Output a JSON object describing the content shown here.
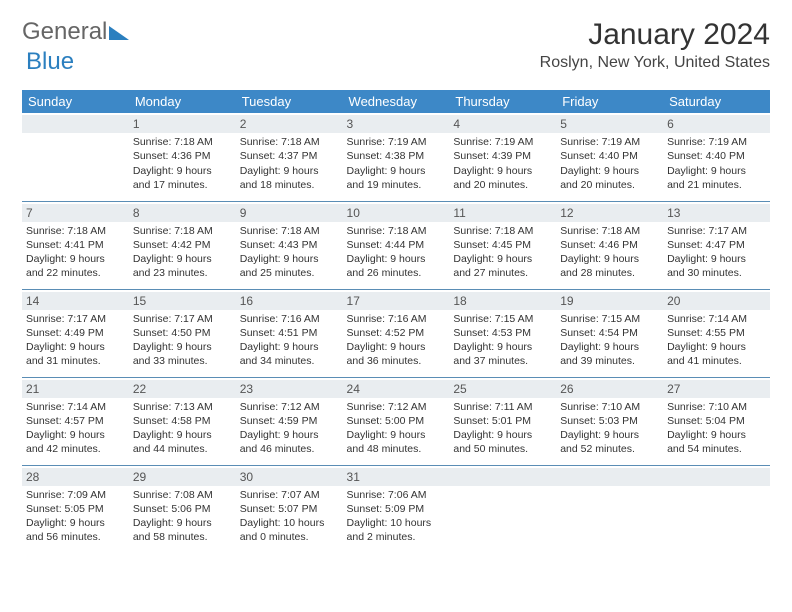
{
  "brand": {
    "part1": "General",
    "part2": "Blue"
  },
  "title": "January 2024",
  "location": "Roslyn, New York, United States",
  "colors": {
    "header_bg": "#3d88c7",
    "daynum_bg": "#e9edf0",
    "row_border": "#5a8db5",
    "brand_blue": "#2b7fbf"
  },
  "dayHeaders": [
    "Sunday",
    "Monday",
    "Tuesday",
    "Wednesday",
    "Thursday",
    "Friday",
    "Saturday"
  ],
  "weeks": [
    [
      null,
      {
        "n": "1",
        "sr": "Sunrise: 7:18 AM",
        "ss": "Sunset: 4:36 PM",
        "dl": "Daylight: 9 hours and 17 minutes."
      },
      {
        "n": "2",
        "sr": "Sunrise: 7:18 AM",
        "ss": "Sunset: 4:37 PM",
        "dl": "Daylight: 9 hours and 18 minutes."
      },
      {
        "n": "3",
        "sr": "Sunrise: 7:19 AM",
        "ss": "Sunset: 4:38 PM",
        "dl": "Daylight: 9 hours and 19 minutes."
      },
      {
        "n": "4",
        "sr": "Sunrise: 7:19 AM",
        "ss": "Sunset: 4:39 PM",
        "dl": "Daylight: 9 hours and 20 minutes."
      },
      {
        "n": "5",
        "sr": "Sunrise: 7:19 AM",
        "ss": "Sunset: 4:40 PM",
        "dl": "Daylight: 9 hours and 20 minutes."
      },
      {
        "n": "6",
        "sr": "Sunrise: 7:19 AM",
        "ss": "Sunset: 4:40 PM",
        "dl": "Daylight: 9 hours and 21 minutes."
      }
    ],
    [
      {
        "n": "7",
        "sr": "Sunrise: 7:18 AM",
        "ss": "Sunset: 4:41 PM",
        "dl": "Daylight: 9 hours and 22 minutes."
      },
      {
        "n": "8",
        "sr": "Sunrise: 7:18 AM",
        "ss": "Sunset: 4:42 PM",
        "dl": "Daylight: 9 hours and 23 minutes."
      },
      {
        "n": "9",
        "sr": "Sunrise: 7:18 AM",
        "ss": "Sunset: 4:43 PM",
        "dl": "Daylight: 9 hours and 25 minutes."
      },
      {
        "n": "10",
        "sr": "Sunrise: 7:18 AM",
        "ss": "Sunset: 4:44 PM",
        "dl": "Daylight: 9 hours and 26 minutes."
      },
      {
        "n": "11",
        "sr": "Sunrise: 7:18 AM",
        "ss": "Sunset: 4:45 PM",
        "dl": "Daylight: 9 hours and 27 minutes."
      },
      {
        "n": "12",
        "sr": "Sunrise: 7:18 AM",
        "ss": "Sunset: 4:46 PM",
        "dl": "Daylight: 9 hours and 28 minutes."
      },
      {
        "n": "13",
        "sr": "Sunrise: 7:17 AM",
        "ss": "Sunset: 4:47 PM",
        "dl": "Daylight: 9 hours and 30 minutes."
      }
    ],
    [
      {
        "n": "14",
        "sr": "Sunrise: 7:17 AM",
        "ss": "Sunset: 4:49 PM",
        "dl": "Daylight: 9 hours and 31 minutes."
      },
      {
        "n": "15",
        "sr": "Sunrise: 7:17 AM",
        "ss": "Sunset: 4:50 PM",
        "dl": "Daylight: 9 hours and 33 minutes."
      },
      {
        "n": "16",
        "sr": "Sunrise: 7:16 AM",
        "ss": "Sunset: 4:51 PM",
        "dl": "Daylight: 9 hours and 34 minutes."
      },
      {
        "n": "17",
        "sr": "Sunrise: 7:16 AM",
        "ss": "Sunset: 4:52 PM",
        "dl": "Daylight: 9 hours and 36 minutes."
      },
      {
        "n": "18",
        "sr": "Sunrise: 7:15 AM",
        "ss": "Sunset: 4:53 PM",
        "dl": "Daylight: 9 hours and 37 minutes."
      },
      {
        "n": "19",
        "sr": "Sunrise: 7:15 AM",
        "ss": "Sunset: 4:54 PM",
        "dl": "Daylight: 9 hours and 39 minutes."
      },
      {
        "n": "20",
        "sr": "Sunrise: 7:14 AM",
        "ss": "Sunset: 4:55 PM",
        "dl": "Daylight: 9 hours and 41 minutes."
      }
    ],
    [
      {
        "n": "21",
        "sr": "Sunrise: 7:14 AM",
        "ss": "Sunset: 4:57 PM",
        "dl": "Daylight: 9 hours and 42 minutes."
      },
      {
        "n": "22",
        "sr": "Sunrise: 7:13 AM",
        "ss": "Sunset: 4:58 PM",
        "dl": "Daylight: 9 hours and 44 minutes."
      },
      {
        "n": "23",
        "sr": "Sunrise: 7:12 AM",
        "ss": "Sunset: 4:59 PM",
        "dl": "Daylight: 9 hours and 46 minutes."
      },
      {
        "n": "24",
        "sr": "Sunrise: 7:12 AM",
        "ss": "Sunset: 5:00 PM",
        "dl": "Daylight: 9 hours and 48 minutes."
      },
      {
        "n": "25",
        "sr": "Sunrise: 7:11 AM",
        "ss": "Sunset: 5:01 PM",
        "dl": "Daylight: 9 hours and 50 minutes."
      },
      {
        "n": "26",
        "sr": "Sunrise: 7:10 AM",
        "ss": "Sunset: 5:03 PM",
        "dl": "Daylight: 9 hours and 52 minutes."
      },
      {
        "n": "27",
        "sr": "Sunrise: 7:10 AM",
        "ss": "Sunset: 5:04 PM",
        "dl": "Daylight: 9 hours and 54 minutes."
      }
    ],
    [
      {
        "n": "28",
        "sr": "Sunrise: 7:09 AM",
        "ss": "Sunset: 5:05 PM",
        "dl": "Daylight: 9 hours and 56 minutes."
      },
      {
        "n": "29",
        "sr": "Sunrise: 7:08 AM",
        "ss": "Sunset: 5:06 PM",
        "dl": "Daylight: 9 hours and 58 minutes."
      },
      {
        "n": "30",
        "sr": "Sunrise: 7:07 AM",
        "ss": "Sunset: 5:07 PM",
        "dl": "Daylight: 10 hours and 0 minutes."
      },
      {
        "n": "31",
        "sr": "Sunrise: 7:06 AM",
        "ss": "Sunset: 5:09 PM",
        "dl": "Daylight: 10 hours and 2 minutes."
      },
      null,
      null,
      null
    ]
  ]
}
